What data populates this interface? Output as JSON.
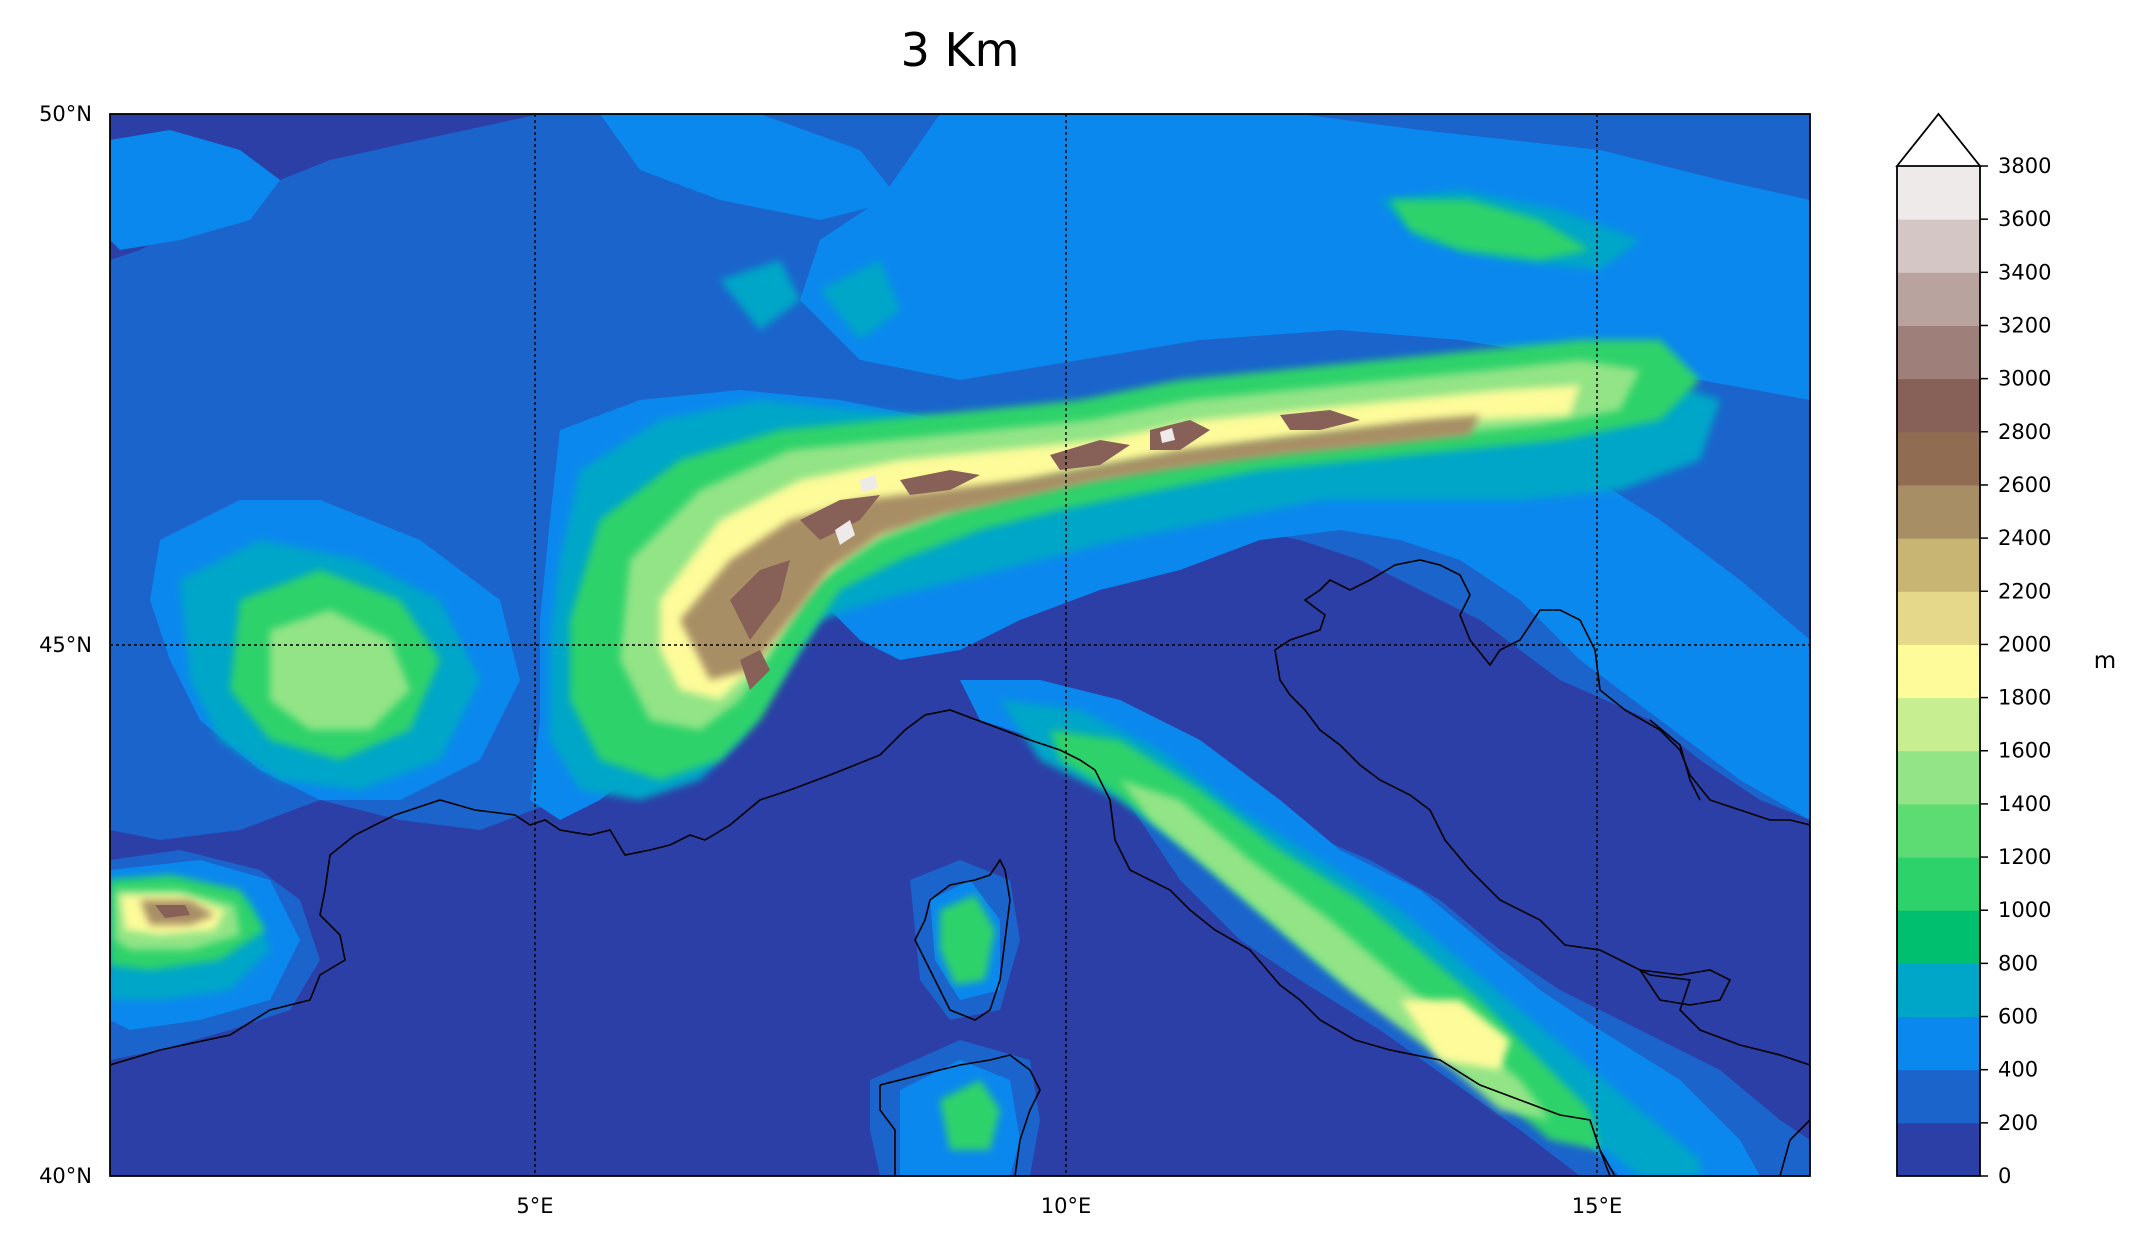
{
  "title": "3 Km",
  "lat_labels": [
    "50°N",
    "45°N",
    "40°N"
  ],
  "lon_labels": [
    "5°E",
    "10°E",
    "15°E"
  ],
  "colorbar": {
    "unit": "m",
    "ticks": [
      "0",
      "200",
      "400",
      "600",
      "800",
      "1000",
      "1200",
      "1400",
      "1600",
      "1800",
      "2000",
      "2200",
      "2400",
      "2600",
      "2800",
      "3000",
      "3200",
      "3400",
      "3600",
      "3800"
    ],
    "colors": [
      "#2b3fa6",
      "#1a64cc",
      "#0b88ee",
      "#00a6c8",
      "#00c070",
      "#2ed26a",
      "#5ddc74",
      "#92e486",
      "#c7ef92",
      "#fdfb9a",
      "#e5d88a",
      "#c8b473",
      "#a88e65",
      "#8f6c52",
      "#876058",
      "#9e7f79",
      "#b8a39f",
      "#d3c6c4",
      "#eeeae9"
    ],
    "extend_color": "#ffffff"
  },
  "map": {
    "sea_color": "#2b3fa6",
    "extent_lon": [
      0.9,
      16.9
    ],
    "extent_lat": [
      40,
      50
    ]
  }
}
